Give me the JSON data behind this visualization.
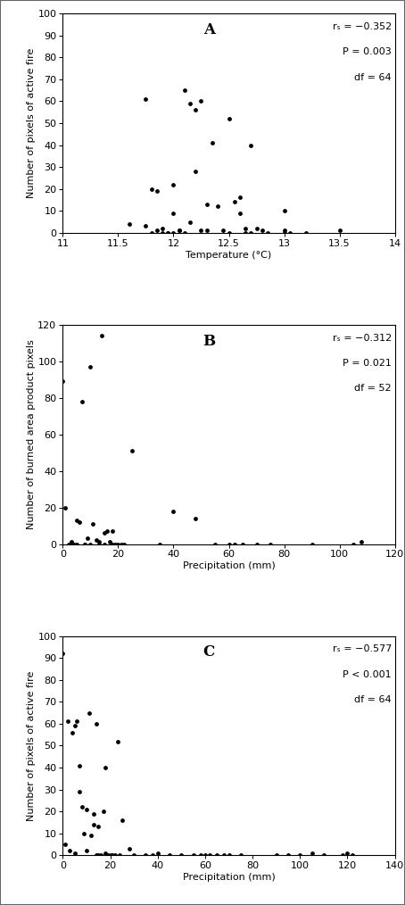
{
  "panel_A": {
    "label": "A",
    "xlabel": "Temperature (°C)",
    "ylabel": "Number of pixels of active fire",
    "xlim": [
      11,
      14
    ],
    "ylim": [
      0,
      100
    ],
    "xticks": [
      11,
      11.5,
      12,
      12.5,
      13,
      13.5,
      14
    ],
    "xticklabels": [
      "11",
      "11.5",
      "12",
      "12.5",
      "13",
      "13.5",
      "14"
    ],
    "yticks": [
      0,
      10,
      20,
      30,
      40,
      50,
      60,
      70,
      80,
      90,
      100
    ],
    "yticklabels": [
      "0",
      "10",
      "20",
      "30",
      "40",
      "50",
      "60",
      "70",
      "80",
      "90",
      "100"
    ],
    "annotation_line1": "rₛ = −0.352",
    "annotation_line2": "P = 0.003",
    "annotation_line3": "df = 64",
    "x": [
      11.6,
      11.75,
      11.75,
      11.8,
      11.8,
      11.85,
      11.85,
      11.9,
      11.9,
      11.95,
      11.95,
      12.0,
      12.0,
      12.0,
      12.05,
      12.05,
      12.1,
      12.1,
      12.15,
      12.15,
      12.2,
      12.2,
      12.25,
      12.25,
      12.3,
      12.3,
      12.35,
      12.4,
      12.45,
      12.5,
      12.5,
      12.55,
      12.6,
      12.6,
      12.65,
      12.65,
      12.7,
      12.7,
      12.75,
      12.8,
      12.85,
      13.0,
      13.0,
      13.0,
      13.05,
      13.2,
      13.5
    ],
    "y": [
      4,
      3,
      61,
      0,
      20,
      19,
      1,
      2,
      0,
      0,
      0,
      9,
      0,
      22,
      1,
      1,
      65,
      0,
      59,
      5,
      56,
      28,
      60,
      1,
      13,
      1,
      41,
      12,
      1,
      0,
      52,
      14,
      16,
      9,
      2,
      0,
      0,
      40,
      2,
      1,
      0,
      0,
      1,
      10,
      0,
      0,
      1
    ]
  },
  "panel_B": {
    "label": "B",
    "xlabel": "Precipitation (mm)",
    "ylabel": "Number of burned area product pixels",
    "xlim": [
      0,
      120
    ],
    "ylim": [
      0,
      120
    ],
    "xticks": [
      0,
      20,
      40,
      60,
      80,
      100,
      120
    ],
    "xticklabels": [
      "0",
      "20",
      "40",
      "60",
      "80",
      "100",
      "120"
    ],
    "yticks": [
      0,
      20,
      40,
      60,
      80,
      100,
      120
    ],
    "yticklabels": [
      "0",
      "20",
      "40",
      "60",
      "80",
      "100",
      "120"
    ],
    "annotation_line1": "rₛ = −0.312",
    "annotation_line2": "P = 0.021",
    "annotation_line3": "df = 52",
    "x": [
      0,
      1,
      2,
      3,
      4,
      5,
      5,
      6,
      7,
      8,
      8,
      9,
      10,
      10,
      11,
      12,
      13,
      13,
      14,
      15,
      15,
      16,
      17,
      18,
      18,
      19,
      20,
      21,
      22,
      25,
      35,
      40,
      48,
      55,
      60,
      62,
      65,
      70,
      75,
      90,
      105,
      108
    ],
    "y": [
      89,
      20,
      0,
      1,
      0,
      13,
      0,
      12,
      78,
      0,
      0,
      3,
      97,
      0,
      11,
      2,
      1,
      0,
      114,
      6,
      0,
      7,
      1,
      0,
      7,
      0,
      0,
      0,
      0,
      51,
      0,
      18,
      14,
      0,
      0,
      0,
      0,
      0,
      0,
      0,
      0,
      1
    ]
  },
  "panel_C": {
    "label": "C",
    "xlabel": "Precipitation (mm)",
    "ylabel": "Number of pixels of active fire",
    "xlim": [
      0,
      140
    ],
    "ylim": [
      0,
      100
    ],
    "xticks": [
      0,
      20,
      40,
      60,
      80,
      100,
      120,
      140
    ],
    "xticklabels": [
      "0",
      "20",
      "40",
      "60",
      "80",
      "100",
      "120",
      "140"
    ],
    "yticks": [
      0,
      10,
      20,
      30,
      40,
      50,
      60,
      70,
      80,
      90,
      100
    ],
    "yticklabels": [
      "0",
      "10",
      "20",
      "30",
      "40",
      "50",
      "60",
      "70",
      "80",
      "90",
      "100"
    ],
    "annotation_line1": "rₛ = −0.577",
    "annotation_line2": "P < 0.001",
    "annotation_line3": "df = 64",
    "x": [
      0,
      1,
      2,
      3,
      4,
      5,
      5,
      6,
      7,
      7,
      8,
      9,
      10,
      10,
      11,
      12,
      13,
      13,
      14,
      14,
      15,
      15,
      16,
      17,
      18,
      18,
      19,
      20,
      21,
      22,
      23,
      24,
      25,
      28,
      30,
      35,
      38,
      40,
      45,
      50,
      55,
      58,
      60,
      62,
      65,
      68,
      70,
      75,
      90,
      95,
      100,
      105,
      110,
      118,
      120,
      122
    ],
    "y": [
      92,
      5,
      61,
      2,
      56,
      59,
      1,
      61,
      41,
      29,
      22,
      10,
      21,
      2,
      65,
      9,
      14,
      19,
      60,
      0,
      13,
      0,
      0,
      20,
      40,
      1,
      0,
      0,
      0,
      0,
      52,
      0,
      16,
      3,
      0,
      0,
      0,
      1,
      0,
      0,
      0,
      0,
      0,
      0,
      0,
      0,
      0,
      0,
      0,
      0,
      0,
      1,
      0,
      0,
      1,
      0
    ]
  },
  "marker_size": 12,
  "marker_color": "black",
  "font_size_label": 8,
  "font_size_tick": 8,
  "font_size_panel_label": 12,
  "font_size_annotation": 8,
  "figure_border_color": "#888888",
  "spine_linewidth": 0.8
}
